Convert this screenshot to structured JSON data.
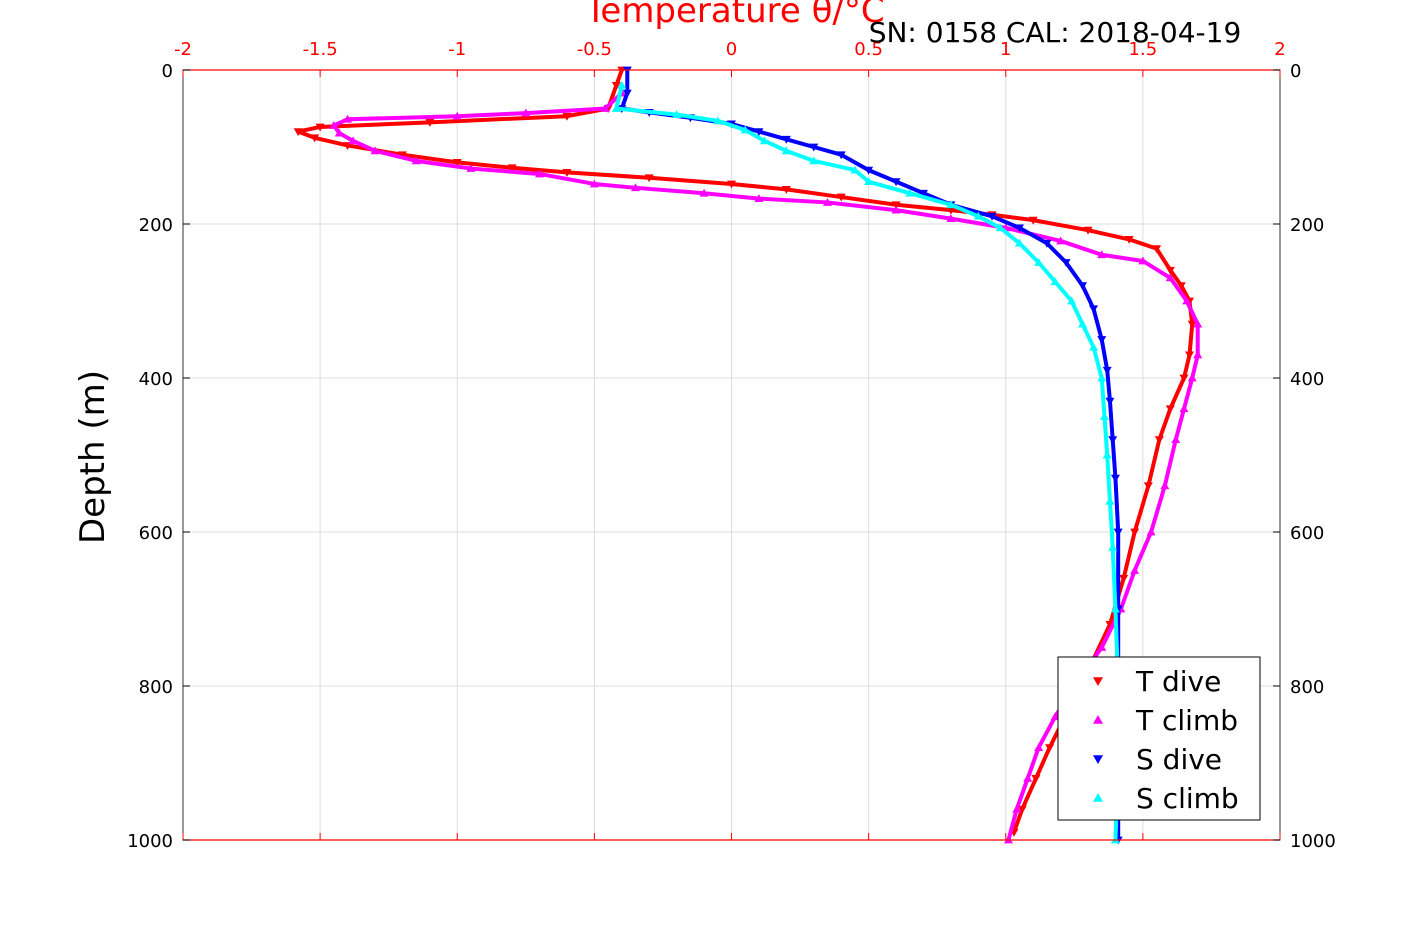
{
  "chart_data": {
    "type": "scatter",
    "title": "Temperature θ/°C",
    "subtitle": "SN: 0158  CAL: 2018-04-19",
    "xlabel": "Temperature θ/°C",
    "ylabel": "Depth (m)",
    "xlim": [
      -2,
      2
    ],
    "ylim": [
      1000,
      0
    ],
    "x_ticks": [
      "-2",
      "-1.5",
      "-1",
      "-0.5",
      "0",
      "0.5",
      "1",
      "1.5",
      "2"
    ],
    "y_ticks": [
      "0",
      "200",
      "400",
      "600",
      "800",
      "1000"
    ],
    "grid": true,
    "legend_position": "bottom-right",
    "series": [
      {
        "name": "T dive",
        "marker": "triangle-down",
        "color": "#ff0000",
        "points": [
          [
            -0.4,
            0
          ],
          [
            -0.42,
            20
          ],
          [
            -0.45,
            50
          ],
          [
            -0.6,
            60
          ],
          [
            -1.1,
            68
          ],
          [
            -1.5,
            74
          ],
          [
            -1.58,
            80
          ],
          [
            -1.52,
            88
          ],
          [
            -1.4,
            98
          ],
          [
            -1.2,
            110
          ],
          [
            -1.0,
            120
          ],
          [
            -0.8,
            127
          ],
          [
            -0.6,
            133
          ],
          [
            -0.3,
            140
          ],
          [
            0.0,
            148
          ],
          [
            0.2,
            155
          ],
          [
            0.4,
            165
          ],
          [
            0.6,
            175
          ],
          [
            0.8,
            182
          ],
          [
            0.95,
            188
          ],
          [
            1.1,
            195
          ],
          [
            1.3,
            208
          ],
          [
            1.45,
            220
          ],
          [
            1.55,
            232
          ],
          [
            1.6,
            260
          ],
          [
            1.64,
            280
          ],
          [
            1.67,
            300
          ],
          [
            1.68,
            330
          ],
          [
            1.67,
            370
          ],
          [
            1.65,
            400
          ],
          [
            1.6,
            440
          ],
          [
            1.56,
            480
          ],
          [
            1.52,
            540
          ],
          [
            1.47,
            600
          ],
          [
            1.43,
            660
          ],
          [
            1.38,
            720
          ],
          [
            1.3,
            780
          ],
          [
            1.23,
            830
          ],
          [
            1.16,
            880
          ],
          [
            1.11,
            920
          ],
          [
            1.06,
            960
          ],
          [
            1.03,
            990
          ]
        ]
      },
      {
        "name": "T climb",
        "marker": "triangle-up",
        "color": "#ff00ff",
        "points": [
          [
            -0.4,
            30
          ],
          [
            -0.46,
            50
          ],
          [
            -0.75,
            56
          ],
          [
            -1.0,
            60
          ],
          [
            -1.4,
            64
          ],
          [
            -1.45,
            72
          ],
          [
            -1.43,
            82
          ],
          [
            -1.38,
            92
          ],
          [
            -1.3,
            105
          ],
          [
            -1.15,
            118
          ],
          [
            -0.95,
            128
          ],
          [
            -0.7,
            135
          ],
          [
            -0.5,
            148
          ],
          [
            -0.35,
            153
          ],
          [
            -0.1,
            160
          ],
          [
            0.1,
            167
          ],
          [
            0.35,
            172
          ],
          [
            0.6,
            182
          ],
          [
            0.8,
            193
          ],
          [
            1.0,
            205
          ],
          [
            1.2,
            222
          ],
          [
            1.35,
            240
          ],
          [
            1.5,
            248
          ],
          [
            1.6,
            270
          ],
          [
            1.66,
            300
          ],
          [
            1.7,
            330
          ],
          [
            1.7,
            370
          ],
          [
            1.68,
            400
          ],
          [
            1.65,
            440
          ],
          [
            1.62,
            480
          ],
          [
            1.58,
            540
          ],
          [
            1.53,
            600
          ],
          [
            1.47,
            650
          ],
          [
            1.42,
            700
          ],
          [
            1.35,
            750
          ],
          [
            1.25,
            800
          ],
          [
            1.18,
            840
          ],
          [
            1.12,
            880
          ],
          [
            1.08,
            920
          ],
          [
            1.04,
            960
          ],
          [
            1.01,
            1000
          ]
        ]
      },
      {
        "name": "S dive",
        "marker": "triangle-down",
        "color": "#0000ff",
        "points": [
          [
            -0.38,
            0
          ],
          [
            -0.38,
            30
          ],
          [
            -0.4,
            50
          ],
          [
            -0.3,
            55
          ],
          [
            -0.15,
            62
          ],
          [
            0.0,
            70
          ],
          [
            0.1,
            80
          ],
          [
            0.2,
            90
          ],
          [
            0.3,
            100
          ],
          [
            0.4,
            110
          ],
          [
            0.5,
            130
          ],
          [
            0.6,
            145
          ],
          [
            0.7,
            160
          ],
          [
            0.8,
            175
          ],
          [
            0.95,
            190
          ],
          [
            1.05,
            205
          ],
          [
            1.15,
            225
          ],
          [
            1.22,
            250
          ],
          [
            1.28,
            280
          ],
          [
            1.32,
            310
          ],
          [
            1.35,
            350
          ],
          [
            1.37,
            390
          ],
          [
            1.38,
            430
          ],
          [
            1.39,
            480
          ],
          [
            1.4,
            530
          ],
          [
            1.41,
            600
          ],
          [
            1.41,
            700
          ],
          [
            1.41,
            800
          ],
          [
            1.41,
            900
          ],
          [
            1.41,
            1000
          ]
        ]
      },
      {
        "name": "S climb",
        "marker": "triangle-up",
        "color": "#00ffff",
        "points": [
          [
            -0.4,
            20
          ],
          [
            -0.42,
            50
          ],
          [
            -0.2,
            58
          ],
          [
            -0.05,
            66
          ],
          [
            0.05,
            78
          ],
          [
            0.12,
            92
          ],
          [
            0.2,
            105
          ],
          [
            0.3,
            118
          ],
          [
            0.45,
            130
          ],
          [
            0.5,
            145
          ],
          [
            0.65,
            160
          ],
          [
            0.8,
            175
          ],
          [
            0.9,
            190
          ],
          [
            0.98,
            205
          ],
          [
            1.05,
            225
          ],
          [
            1.12,
            250
          ],
          [
            1.18,
            275
          ],
          [
            1.24,
            300
          ],
          [
            1.28,
            330
          ],
          [
            1.32,
            360
          ],
          [
            1.35,
            400
          ],
          [
            1.36,
            450
          ],
          [
            1.37,
            500
          ],
          [
            1.38,
            560
          ],
          [
            1.39,
            620
          ],
          [
            1.4,
            700
          ],
          [
            1.41,
            800
          ],
          [
            1.41,
            900
          ],
          [
            1.4,
            1000
          ]
        ]
      }
    ]
  }
}
